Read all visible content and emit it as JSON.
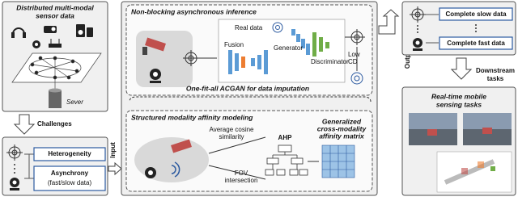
{
  "sensor_panel": {
    "title": [
      "Distributed multi-modal",
      "sensor data"
    ],
    "server": "Sever"
  },
  "challenges": "Challenges",
  "challenge_panel": {
    "items": [
      [
        "Heterogeneity"
      ],
      [
        "Asynchrony",
        "(fast/slow data)"
      ]
    ]
  },
  "input": "Input",
  "inference": {
    "title": "Non-blocking asynchronous inference",
    "real_data": "Real data",
    "fusion": "Fusion",
    "generator": "Generator",
    "discriminator": "Discriminator",
    "low_cd": [
      "Low",
      "CD"
    ],
    "caption": "One-fit-all ACGAN for data imputation"
  },
  "affinity": {
    "title": "Structured modality affinity modeling",
    "cosine": [
      "Average cosine",
      "similarity"
    ],
    "ahp": "AHP",
    "fov": [
      "FOV",
      "intersection"
    ],
    "matrix": [
      "Generalized",
      "cross-modality",
      "affinity matrix"
    ]
  },
  "output": "Output",
  "output_panel": {
    "items": [
      "Complete slow data",
      "Complete fast data"
    ]
  },
  "downstream": [
    "Downstream",
    "tasks"
  ],
  "tasks_panel": {
    "title": [
      "Real-time mobile",
      "sensing tasks"
    ]
  }
}
